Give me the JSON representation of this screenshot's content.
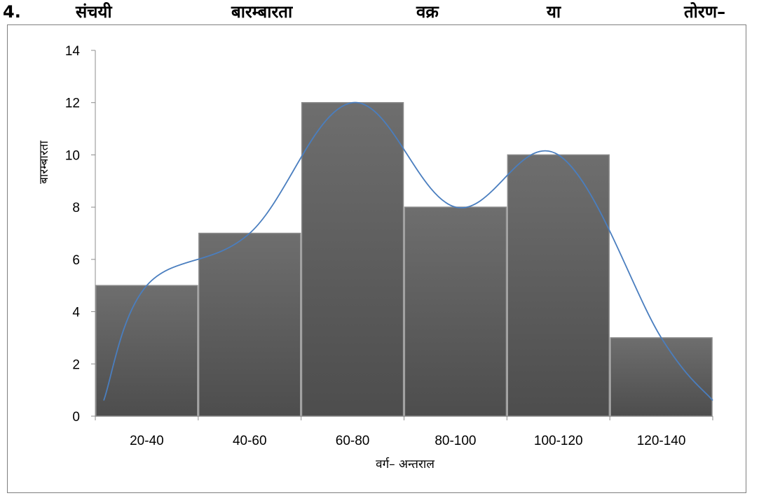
{
  "heading": {
    "number": "4.",
    "words": [
      "संचयी",
      "बारम्बारता",
      "वक्र",
      "या",
      "तोरण–"
    ]
  },
  "chart_data": {
    "type": "bar",
    "title": "",
    "xlabel": "वर्ग– अन्तराल",
    "ylabel": "बारम्बारता",
    "categories": [
      "20-40",
      "40-60",
      "60-80",
      "80-100",
      "100-120",
      "120-140"
    ],
    "series": [
      {
        "values": [
          5,
          7,
          12,
          8,
          10,
          3
        ]
      }
    ],
    "ylim": [
      0,
      14
    ],
    "yticks": [
      0,
      2,
      4,
      6,
      8,
      10,
      12,
      14
    ],
    "smoothed_curve": true,
    "grid": false,
    "legend": "none",
    "colors": {
      "bar": "#5f5f5f",
      "bar_edge": "#8a8a8a",
      "curve": "#4a7ebf",
      "axis": "#8c8c8c"
    }
  }
}
